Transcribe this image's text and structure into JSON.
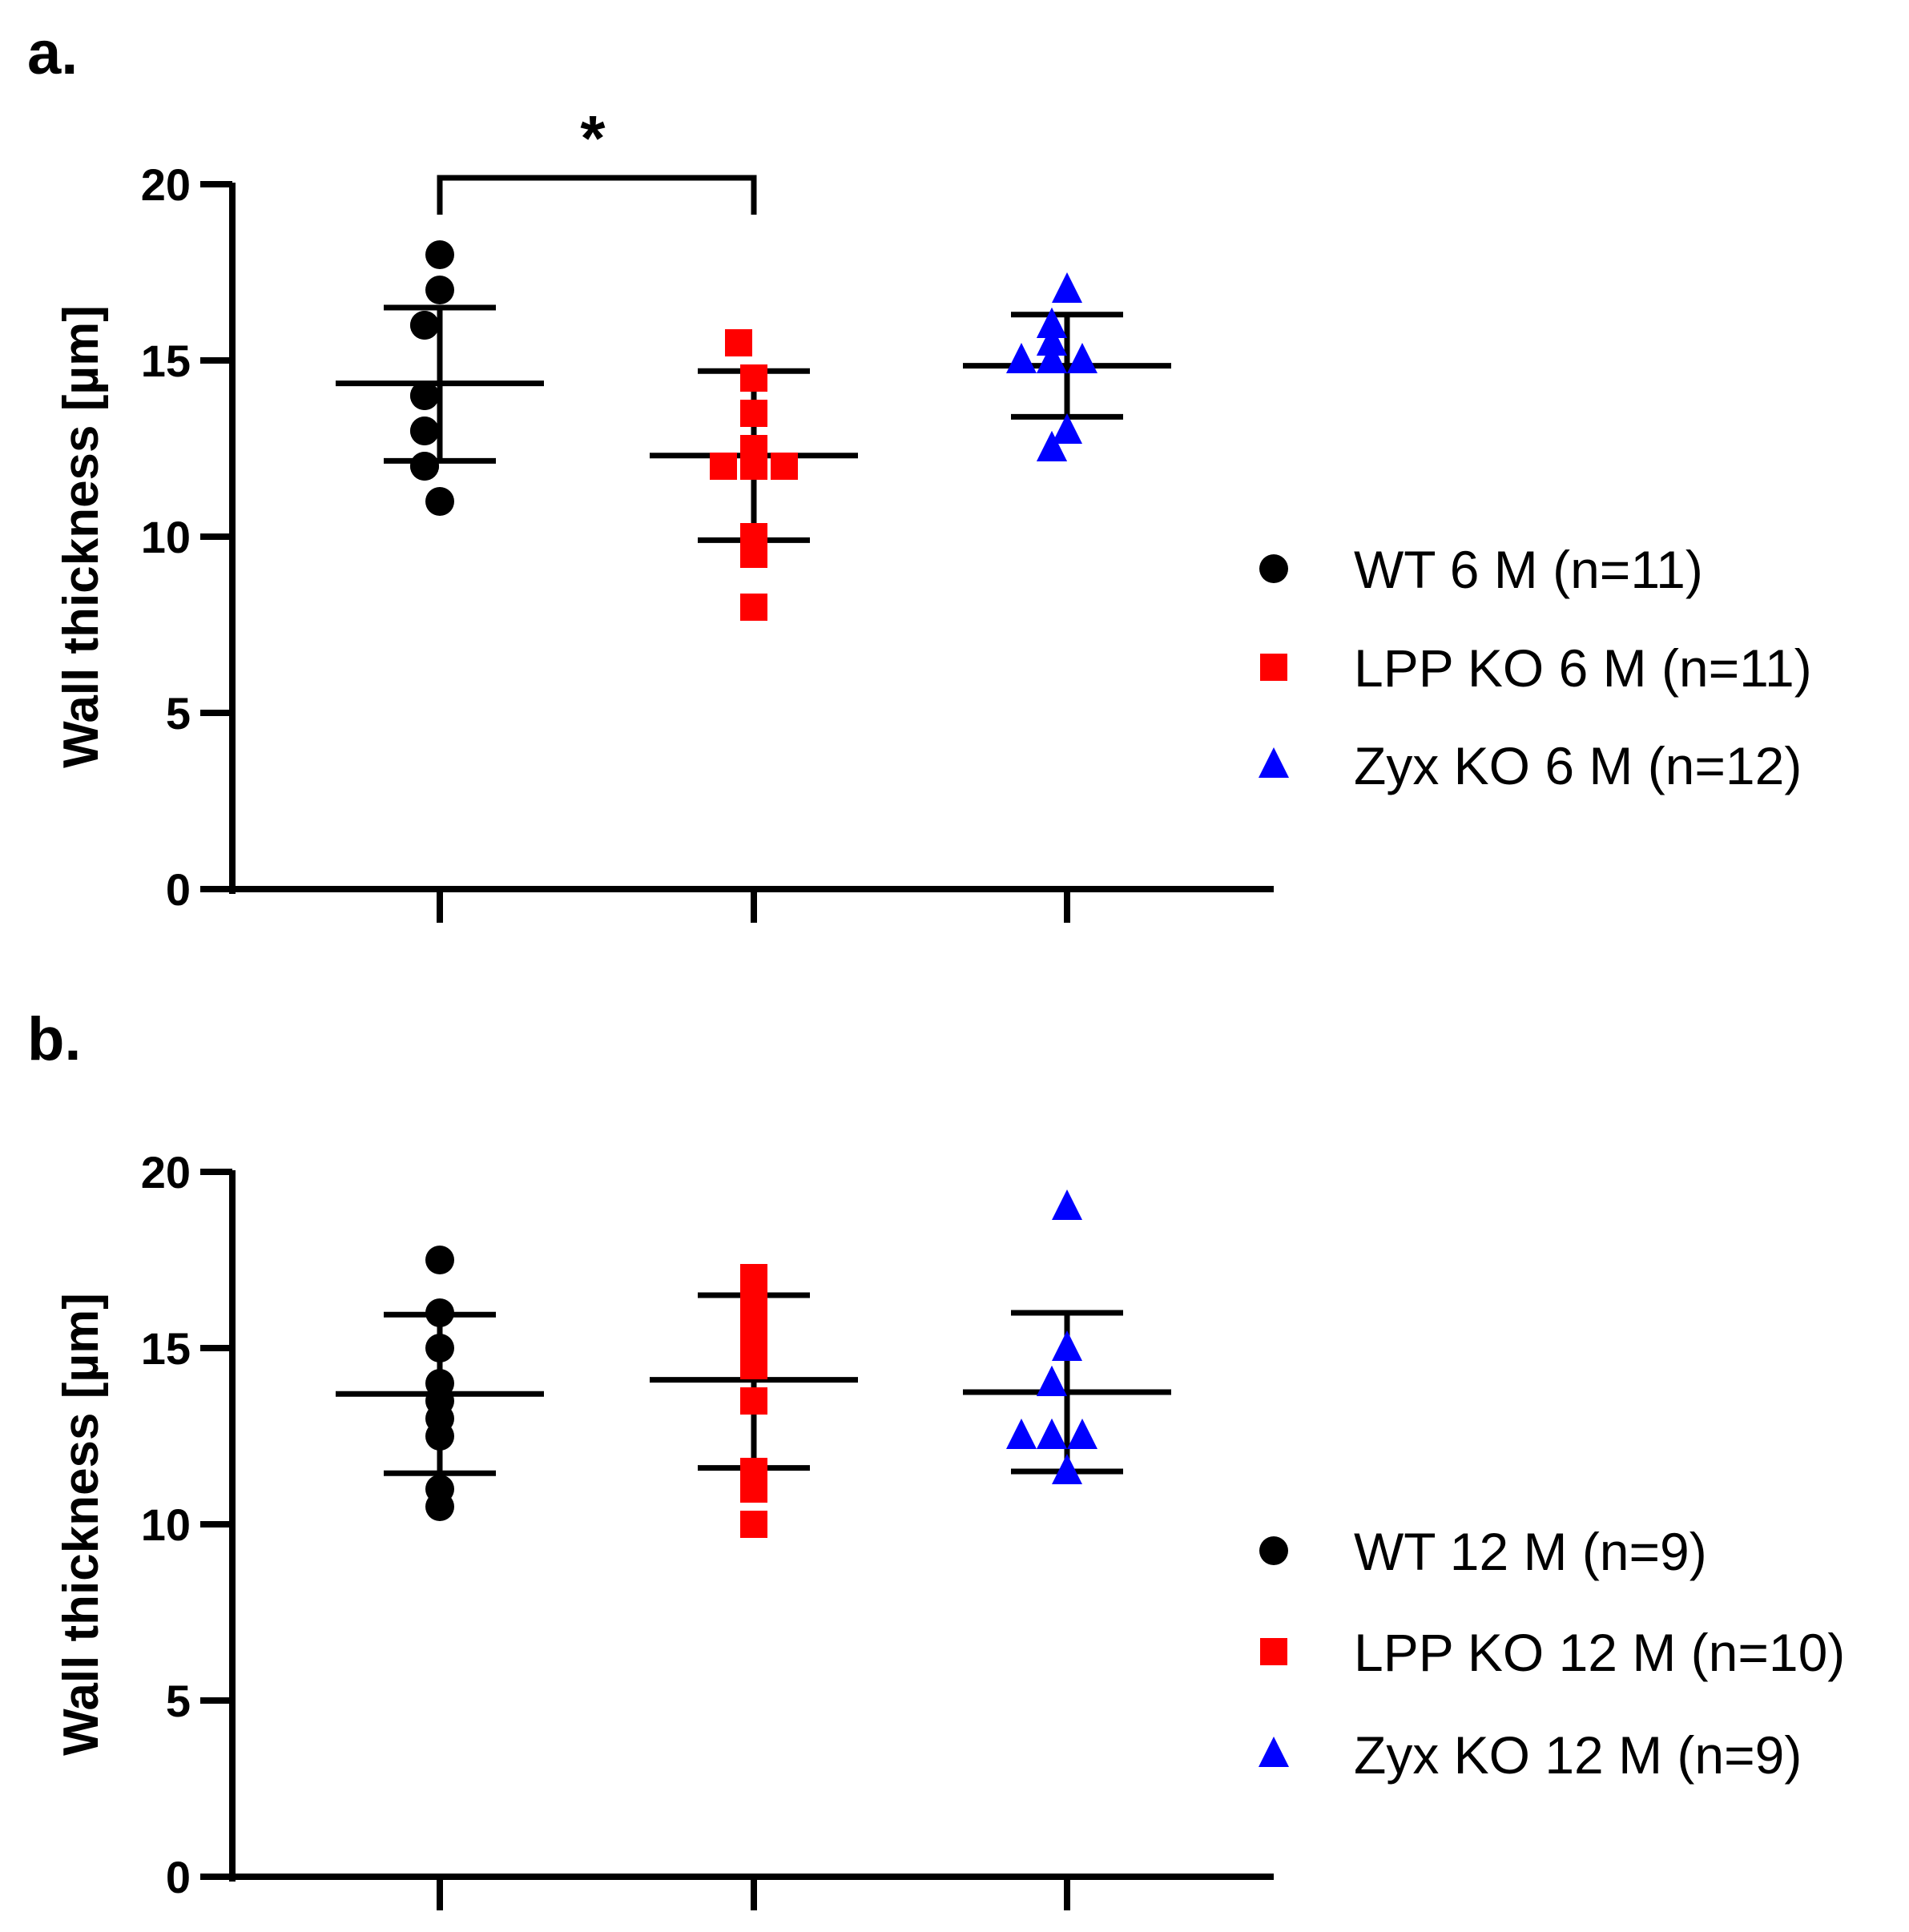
{
  "chart_data": [
    {
      "panel_label": "a.",
      "type": "scatter",
      "ylabel": "Wall thickness [µm]",
      "ylim": [
        0,
        20
      ],
      "yticks": [
        0,
        5,
        10,
        15,
        20
      ],
      "legend_position": "right",
      "significance": {
        "between": [
          0,
          1
        ],
        "label": "*"
      },
      "series": [
        {
          "name": "WT 6 M (n=11)",
          "marker": "circle",
          "color": "#000000",
          "points": [
            18,
            17,
            16,
            16,
            14,
            14,
            13,
            13,
            12,
            12,
            11
          ],
          "mean": 14.35,
          "sd_low": 12.15,
          "sd_high": 16.5
        },
        {
          "name": "LPP KO 6 M (n=11)",
          "marker": "square",
          "color": "#ff0000",
          "points": [
            15.5,
            15.5,
            14.5,
            13.5,
            12.5,
            12,
            12,
            12,
            10,
            9.5,
            8
          ],
          "mean": 12.3,
          "sd_low": 9.9,
          "sd_high": 14.7
        },
        {
          "name": "Zyx KO 6 M (n=12)",
          "marker": "triangle",
          "color": "#0000ff",
          "points": [
            17,
            16,
            16,
            15.5,
            15.5,
            15,
            15,
            15,
            15,
            13,
            12.5,
            12.5
          ],
          "mean": 14.85,
          "sd_low": 13.4,
          "sd_high": 16.3
        }
      ]
    },
    {
      "panel_label": "b.",
      "type": "scatter",
      "ylabel": "Wall thickness [µm]",
      "ylim": [
        0,
        20
      ],
      "yticks": [
        0,
        5,
        10,
        15,
        20
      ],
      "legend_position": "right",
      "series": [
        {
          "name": "WT 12 M (n=9)",
          "marker": "circle",
          "color": "#000000",
          "points": [
            17.5,
            16,
            15,
            14,
            13.5,
            13,
            12.5,
            11,
            10.5
          ],
          "mean": 13.7,
          "sd_low": 11.45,
          "sd_high": 15.95
        },
        {
          "name": "LPP KO 12 M (n=10)",
          "marker": "square",
          "color": "#ff0000",
          "points": [
            17,
            16.5,
            16,
            15.5,
            15,
            14.5,
            13.5,
            11.5,
            11,
            10
          ],
          "mean": 14.1,
          "sd_low": 11.6,
          "sd_high": 16.5
        },
        {
          "name": "Zyx KO 12 M (n=9)",
          "marker": "triangle",
          "color": "#0000ff",
          "points": [
            19,
            15,
            14,
            14,
            12.5,
            12.5,
            12.5,
            12.5,
            11.5
          ],
          "mean": 13.75,
          "sd_low": 11.5,
          "sd_high": 16
        }
      ]
    }
  ]
}
